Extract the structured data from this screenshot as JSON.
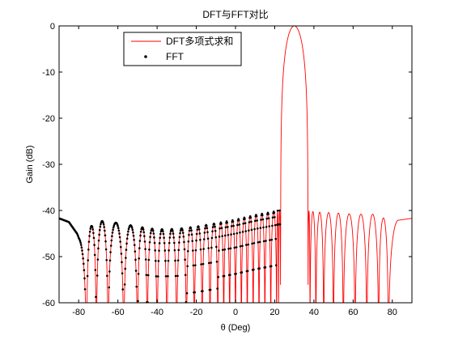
{
  "chart_data": {
    "type": "line",
    "title": "DFT与FFT对比",
    "xlabel": "θ (Deg)",
    "ylabel": "Gain (dB)",
    "xlim": [
      -90,
      90
    ],
    "ylim": [
      -60,
      0
    ],
    "xticks": [
      -80,
      -60,
      -40,
      -20,
      0,
      20,
      40,
      60,
      80
    ],
    "yticks": [
      0,
      -10,
      -20,
      -30,
      -40,
      -50,
      -60
    ],
    "grid": false,
    "legend": "top-left",
    "main_lobe": {
      "peak_deg": 30,
      "peak_db": 0
    },
    "envelope": [
      [
        -90,
        -41.7
      ],
      [
        -85,
        -42.5
      ],
      [
        -80,
        -45.5
      ],
      [
        -70,
        -42.2
      ],
      [
        -60,
        -42.7
      ],
      [
        -50,
        -43.5
      ],
      [
        -40,
        -44.1
      ],
      [
        -30,
        -44.0
      ],
      [
        -20,
        -43.5
      ],
      [
        -10,
        -42.8
      ],
      [
        0,
        -42.0
      ],
      [
        10,
        -41.0
      ],
      [
        20,
        -40.2
      ],
      [
        22,
        -40.0
      ],
      [
        37,
        -40.0
      ],
      [
        40,
        -40.3
      ],
      [
        50,
        -40.5
      ],
      [
        60,
        -40.8
      ],
      [
        70,
        -40.8
      ],
      [
        80,
        -42.3
      ],
      [
        90,
        -41.7
      ]
    ],
    "nulls_deg": [
      -76,
      -71,
      -65,
      -57,
      -50,
      -45,
      -40,
      -35,
      -30,
      -25,
      -21,
      -17,
      -13,
      -9,
      -6,
      -3,
      0,
      3,
      6,
      9,
      12,
      15,
      18,
      21,
      22,
      23,
      38,
      41,
      45,
      50,
      55,
      61,
      67,
      73,
      78
    ],
    "series": [
      {
        "name": "DFT多项式求和",
        "style": "line",
        "color": "#ff0000"
      },
      {
        "name": "FFT",
        "style": "markers",
        "color": "#000000"
      }
    ]
  }
}
